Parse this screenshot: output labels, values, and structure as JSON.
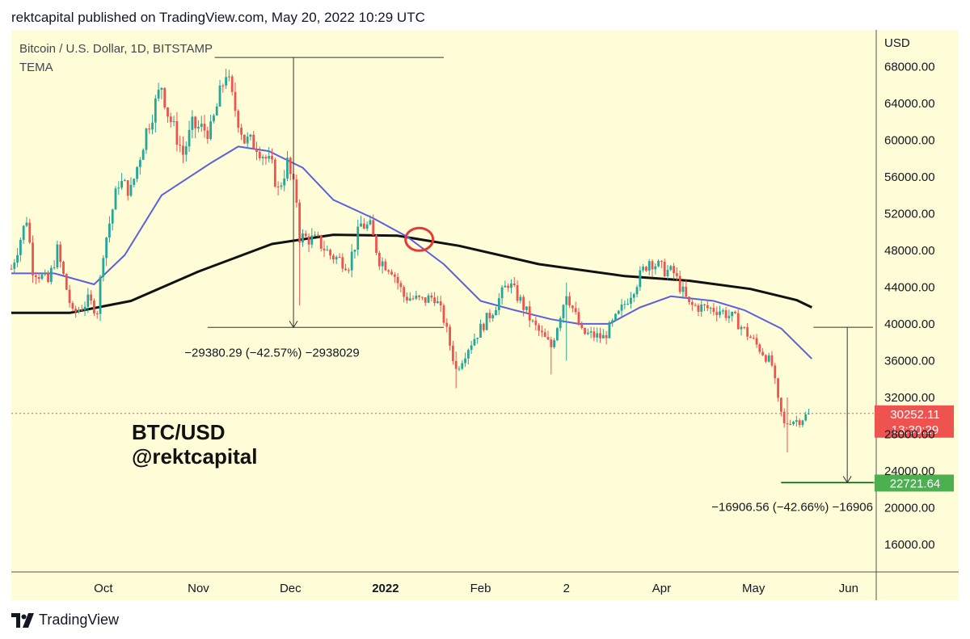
{
  "header": {
    "text": "rektcapital published on TradingView.com, May 20, 2022 10:29 UTC"
  },
  "footer": {
    "brand": "TradingView"
  },
  "colors": {
    "background": "#fffdd7",
    "up": "#26a69a",
    "down": "#ef5350",
    "tema_fast": "#5b5fe0",
    "tema_slow": "#111111",
    "price_label": "#ef5350",
    "target_label": "#4caf50",
    "annotation_circle": "#e53935"
  },
  "chart_data": {
    "type": "candlestick",
    "title": "Bitcoin / U.S. Dollar, 1D, BITSTAMP",
    "indicator": "TEMA",
    "y_unit": "USD",
    "ylim": [
      13000,
      72000
    ],
    "y_ticks": [
      "16000.00",
      "20000.00",
      "24000.00",
      "28000.00",
      "32000.00",
      "36000.00",
      "40000.00",
      "44000.00",
      "48000.00",
      "52000.00",
      "56000.00",
      "60000.00",
      "64000.00",
      "68000.00"
    ],
    "x_start": "2021-09-01",
    "x_end": "2022-06-10",
    "x_ticks": [
      {
        "date": "2021-10-01",
        "label": "Oct",
        "bold": false
      },
      {
        "date": "2021-11-01",
        "label": "Nov",
        "bold": false
      },
      {
        "date": "2021-12-01",
        "label": "Dec",
        "bold": false
      },
      {
        "date": "2022-01-01",
        "label": "2022",
        "bold": true
      },
      {
        "date": "2022-02-01",
        "label": "Feb",
        "bold": false
      },
      {
        "date": "2022-03-01",
        "label": "2",
        "bold": false
      },
      {
        "date": "2022-04-01",
        "label": "Apr",
        "bold": false
      },
      {
        "date": "2022-05-01",
        "label": "May",
        "bold": false
      },
      {
        "date": "2022-06-01",
        "label": "Jun",
        "bold": false
      }
    ],
    "price_anchors": [
      [
        "2021-09-01",
        46000
      ],
      [
        "2021-09-06",
        51500
      ],
      [
        "2021-09-08",
        46000
      ],
      [
        "2021-09-13",
        44500
      ],
      [
        "2021-09-16",
        48000
      ],
      [
        "2021-09-21",
        41000
      ],
      [
        "2021-09-26",
        42500
      ],
      [
        "2021-09-29",
        41500
      ],
      [
        "2021-10-01",
        48000
      ],
      [
        "2021-10-06",
        55500
      ],
      [
        "2021-10-10",
        54500
      ],
      [
        "2021-10-15",
        61000
      ],
      [
        "2021-10-20",
        66000
      ],
      [
        "2021-10-22",
        63000
      ],
      [
        "2021-10-27",
        58500
      ],
      [
        "2021-10-30",
        61500
      ],
      [
        "2021-11-05",
        61000
      ],
      [
        "2021-11-10",
        67500
      ],
      [
        "2021-11-12",
        64500
      ],
      [
        "2021-11-16",
        60000
      ],
      [
        "2021-11-20",
        59500
      ],
      [
        "2021-11-25",
        57000
      ],
      [
        "2021-11-27",
        54500
      ],
      [
        "2021-11-30",
        57500
      ],
      [
        "2021-12-03",
        53500
      ],
      [
        "2021-12-04",
        49500
      ],
      [
        "2021-12-10",
        49000
      ],
      [
        "2021-12-14",
        47500
      ],
      [
        "2021-12-20",
        46500
      ],
      [
        "2021-12-24",
        50800
      ],
      [
        "2021-12-27",
        50500
      ],
      [
        "2021-12-30",
        47000
      ],
      [
        "2022-01-03",
        46000
      ],
      [
        "2022-01-07",
        43000
      ],
      [
        "2022-01-13",
        42500
      ],
      [
        "2022-01-17",
        43000
      ],
      [
        "2022-01-20",
        40500
      ],
      [
        "2022-01-24",
        35000
      ],
      [
        "2022-01-28",
        37500
      ],
      [
        "2022-02-05",
        41500
      ],
      [
        "2022-02-10",
        44500
      ],
      [
        "2022-02-14",
        42500
      ],
      [
        "2022-02-18",
        40000
      ],
      [
        "2022-02-24",
        37500
      ],
      [
        "2022-03-01",
        43500
      ],
      [
        "2022-03-06",
        39000
      ],
      [
        "2022-03-13",
        38500
      ],
      [
        "2022-03-18",
        41000
      ],
      [
        "2022-03-28",
        47000
      ],
      [
        "2022-04-01",
        46000
      ],
      [
        "2022-04-05",
        45500
      ],
      [
        "2022-04-10",
        42000
      ],
      [
        "2022-04-20",
        41500
      ],
      [
        "2022-04-25",
        40500
      ],
      [
        "2022-04-30",
        38500
      ],
      [
        "2022-05-05",
        36500
      ],
      [
        "2022-05-07",
        35500
      ],
      [
        "2022-05-09",
        31500
      ],
      [
        "2022-05-11",
        29000
      ],
      [
        "2022-05-13",
        29500
      ],
      [
        "2022-05-16",
        29500
      ],
      [
        "2022-05-19",
        30252
      ]
    ],
    "tema_fast": [
      [
        "2021-09-01",
        45500
      ],
      [
        "2021-09-15",
        45500
      ],
      [
        "2021-09-28",
        44300
      ],
      [
        "2021-10-08",
        47500
      ],
      [
        "2021-10-20",
        54000
      ],
      [
        "2021-11-05",
        57500
      ],
      [
        "2021-11-14",
        59300
      ],
      [
        "2021-11-24",
        58800
      ],
      [
        "2021-12-05",
        57000
      ],
      [
        "2021-12-15",
        53500
      ],
      [
        "2021-12-28",
        51500
      ],
      [
        "2022-01-08",
        49500
      ],
      [
        "2022-01-20",
        46500
      ],
      [
        "2022-02-01",
        42500
      ],
      [
        "2022-02-12",
        41500
      ],
      [
        "2022-02-24",
        40500
      ],
      [
        "2022-03-05",
        40000
      ],
      [
        "2022-03-15",
        40000
      ],
      [
        "2022-03-25",
        41800
      ],
      [
        "2022-04-04",
        43000
      ],
      [
        "2022-04-18",
        42500
      ],
      [
        "2022-04-28",
        41500
      ],
      [
        "2022-05-10",
        39500
      ],
      [
        "2022-05-20",
        36200
      ]
    ],
    "tema_slow": [
      [
        "2021-09-01",
        41200
      ],
      [
        "2021-09-20",
        41200
      ],
      [
        "2021-10-10",
        42500
      ],
      [
        "2021-11-01",
        45700
      ],
      [
        "2021-11-25",
        48700
      ],
      [
        "2021-12-15",
        49700
      ],
      [
        "2022-01-05",
        49600
      ],
      [
        "2022-01-25",
        48500
      ],
      [
        "2022-02-20",
        46500
      ],
      [
        "2022-03-20",
        45200
      ],
      [
        "2022-04-10",
        44700
      ],
      [
        "2022-04-30",
        43800
      ],
      [
        "2022-05-15",
        42600
      ],
      [
        "2022-05-20",
        41800
      ]
    ],
    "current_price": {
      "value": 30252.11,
      "label": "30252.11",
      "countdown": "13:30:29"
    },
    "target_price": {
      "value": 22721.64,
      "label": "22721.64"
    },
    "measures": [
      {
        "from_date": "2021-11-10",
        "to_date": "2022-01-20",
        "high": 69000,
        "low": 39620,
        "label": "−29380.29 (−42.57%) −2938029"
      },
      {
        "from_date": "2022-05-20",
        "to_date": "2022-06-10",
        "high": 39628,
        "low": 22721.64,
        "label": "−16906.56 (−42.66%) −16906"
      }
    ],
    "crossover_date": "2022-01-12",
    "crossover_price": 49200,
    "watermark": [
      "BTC/USD",
      "@rektcapital"
    ]
  }
}
